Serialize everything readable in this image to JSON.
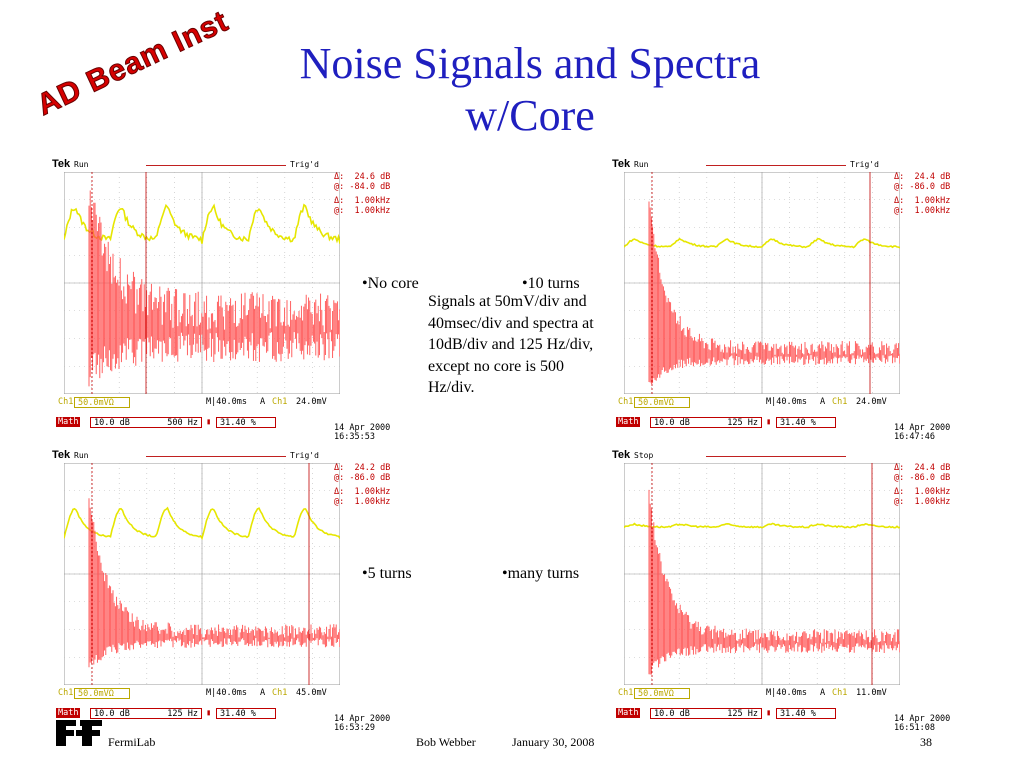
{
  "slide": {
    "title_line1": "Noise Signals and Spectra",
    "title_line2": "w/Core",
    "stamp": "AD Beam Inst",
    "description": "Signals at 50mV/div and 40msec/div and spectra at 10dB/div and 125 Hz/div, except no core is 500 Hz/div.",
    "labels": {
      "no_core": "•No core",
      "ten_turns": "•10 turns",
      "five_turns": "•5 turns",
      "many_turns": "•many turns"
    }
  },
  "scopes": [
    {
      "state": "Run",
      "trig": "Trig'd",
      "delta_db": "24.6 dB",
      "at_db": "-84.0 dB",
      "delta_hz": "1.00kHz",
      "at_hz": "1.00kHz",
      "ch1": "50.0mVΩ",
      "time": "M|40.0ms",
      "trig_ch": "Ch1",
      "trig_lvl": "24.0mV",
      "math_db": "10.0 dB",
      "math_hz": "500 Hz",
      "pct": "31.40 %",
      "date": "14 Apr 2000",
      "clock": "16:35:53",
      "signal": "big"
    },
    {
      "state": "Run",
      "trig": "Trig'd",
      "delta_db": "24.4 dB",
      "at_db": "-86.0 dB",
      "delta_hz": "1.00kHz",
      "at_hz": "1.00kHz",
      "ch1": "50.0mVΩ",
      "time": "M|40.0ms",
      "trig_ch": "Ch1",
      "trig_lvl": "24.0mV",
      "math_db": "10.0 dB",
      "math_hz": "125 Hz",
      "pct": "31.40 %",
      "date": "14 Apr 2000",
      "clock": "16:47:46",
      "signal": "small"
    },
    {
      "state": "Run",
      "trig": "Trig'd",
      "delta_db": "24.2 dB",
      "at_db": "-86.0 dB",
      "delta_hz": "1.00kHz",
      "at_hz": "1.00kHz",
      "ch1": "50.0mVΩ",
      "time": "M|40.0ms",
      "trig_ch": "Ch1",
      "trig_lvl": "45.0mV",
      "math_db": "10.0 dB",
      "math_hz": "125 Hz",
      "pct": "31.40 %",
      "date": "14 Apr 2000",
      "clock": "16:53:29",
      "signal": "medium"
    },
    {
      "state": "Stop",
      "trig": "",
      "delta_db": "24.4 dB",
      "at_db": "-86.0 dB",
      "delta_hz": "1.00kHz",
      "at_hz": "1.00kHz",
      "ch1": "50.0mVΩ",
      "time": "M|40.0ms",
      "trig_ch": "Ch1",
      "trig_lvl": "11.0mV",
      "math_db": "10.0 dB",
      "math_hz": "125 Hz",
      "pct": "31.40 %",
      "date": "14 Apr 2000",
      "clock": "16:51:08",
      "signal": "tiny"
    }
  ],
  "footer": {
    "org": "FermiLab",
    "author": "Bob Webber",
    "date": "January 30, 2008",
    "page": "38"
  },
  "colors": {
    "title": "#1f1fbf",
    "trace_signal": "#e6e600",
    "trace_spectrum": "#ff5050",
    "cursor": "#c00000"
  }
}
